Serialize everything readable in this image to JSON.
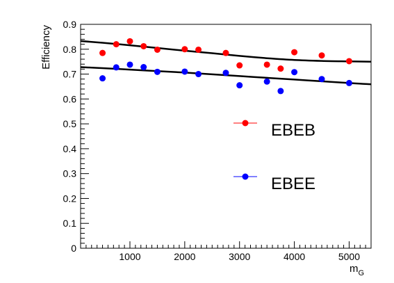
{
  "chart_data": {
    "type": "scatter",
    "title": "",
    "xlabel_main": "m",
    "xlabel_sub": "G",
    "ylabel": "Efficiency",
    "xlim": [
      100,
      5400
    ],
    "ylim": [
      0,
      0.9
    ],
    "x_ticks": [
      1000,
      2000,
      3000,
      4000,
      5000
    ],
    "x_tick_labels": [
      "1000",
      "2000",
      "3000",
      "4000",
      "5000"
    ],
    "y_ticks": [
      0,
      0.1,
      0.2,
      0.3,
      0.4,
      0.5,
      0.6,
      0.7,
      0.8,
      0.9
    ],
    "y_tick_labels": [
      "0",
      "0.1",
      "0.2",
      "0.3",
      "0.4",
      "0.5",
      "0.6",
      "0.7",
      "0.8",
      "0.9"
    ],
    "grid": false,
    "legend_position": "right",
    "series": [
      {
        "name": "EBEB",
        "color": "#ff0000",
        "x": [
          500,
          750,
          1000,
          1250,
          1500,
          2000,
          2250,
          2750,
          3000,
          3500,
          3750,
          4000,
          4500,
          5000
        ],
        "y": [
          0.785,
          0.82,
          0.832,
          0.812,
          0.798,
          0.8,
          0.798,
          0.785,
          0.735,
          0.738,
          0.722,
          0.788,
          0.775,
          0.752
        ],
        "fit": {
          "x": [
            100,
            500,
            1000,
            1500,
            2000,
            2500,
            3000,
            3500,
            4000,
            4500,
            5000,
            5400
          ],
          "y": [
            0.833,
            0.826,
            0.816,
            0.805,
            0.794,
            0.784,
            0.773,
            0.764,
            0.757,
            0.753,
            0.751,
            0.75
          ]
        }
      },
      {
        "name": "EBEE",
        "color": "#0000ff",
        "x": [
          500,
          750,
          1000,
          1250,
          1500,
          2000,
          2250,
          2750,
          3000,
          3500,
          3750,
          4000,
          4500,
          5000
        ],
        "y": [
          0.683,
          0.727,
          0.738,
          0.728,
          0.709,
          0.71,
          0.7,
          0.705,
          0.655,
          0.67,
          0.632,
          0.708,
          0.68,
          0.664
        ],
        "fit": {
          "x": [
            100,
            500,
            1000,
            1500,
            2000,
            2500,
            3000,
            3500,
            4000,
            4500,
            5000,
            5400
          ],
          "y": [
            0.728,
            0.724,
            0.718,
            0.712,
            0.706,
            0.699,
            0.692,
            0.685,
            0.678,
            0.671,
            0.664,
            0.659
          ]
        }
      }
    ]
  }
}
